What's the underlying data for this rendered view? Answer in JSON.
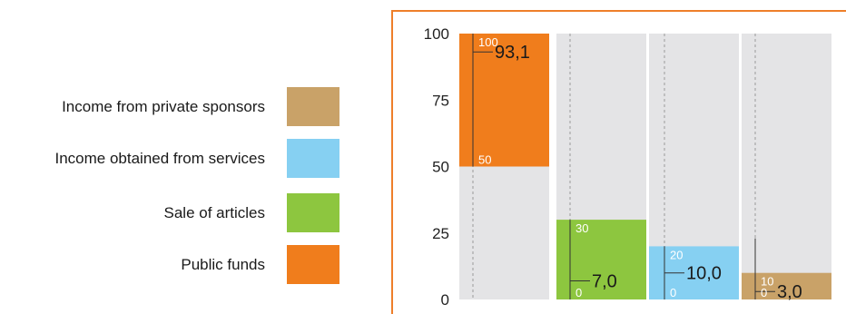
{
  "legend": {
    "items": [
      {
        "label": "Income from private sponsors",
        "color": "#c9a268"
      },
      {
        "label": "Income obtained from services",
        "color": "#86d0f2"
      },
      {
        "label": "Sale of articles",
        "color": "#8dc63f"
      },
      {
        "label": "Public funds",
        "color": "#f07d1c"
      }
    ]
  },
  "colors": {
    "frame": "#ee7f2a",
    "column_bg": "#e4e4e6",
    "axis_text": "#222222",
    "inner_text": "#ffffff"
  },
  "chart_data": {
    "type": "bar",
    "stacked_layout": "separate-columns",
    "ylim": [
      0,
      100
    ],
    "yticks": [
      "0",
      "25",
      "50",
      "75",
      "100"
    ],
    "grid": false,
    "legend_position": "left",
    "bars": [
      {
        "series": "Public funds",
        "value": 93.1,
        "label": "93,1",
        "inner_scale": [
          "100",
          "50"
        ],
        "color": "#f07d1c"
      },
      {
        "series": "Sale of articles",
        "value": 7.0,
        "label": "7,0",
        "inner_scale": [
          "30",
          "0"
        ],
        "color": "#8dc63f"
      },
      {
        "series": "Income obtained from services",
        "value": 10.0,
        "label": "10,0",
        "inner_scale": [
          "20",
          "0"
        ],
        "color": "#86d0f2"
      },
      {
        "series": "Income from private sponsors",
        "value": 3.0,
        "label": "3,0",
        "inner_scale": [
          "10",
          "0"
        ],
        "color": "#c9a268"
      }
    ]
  }
}
